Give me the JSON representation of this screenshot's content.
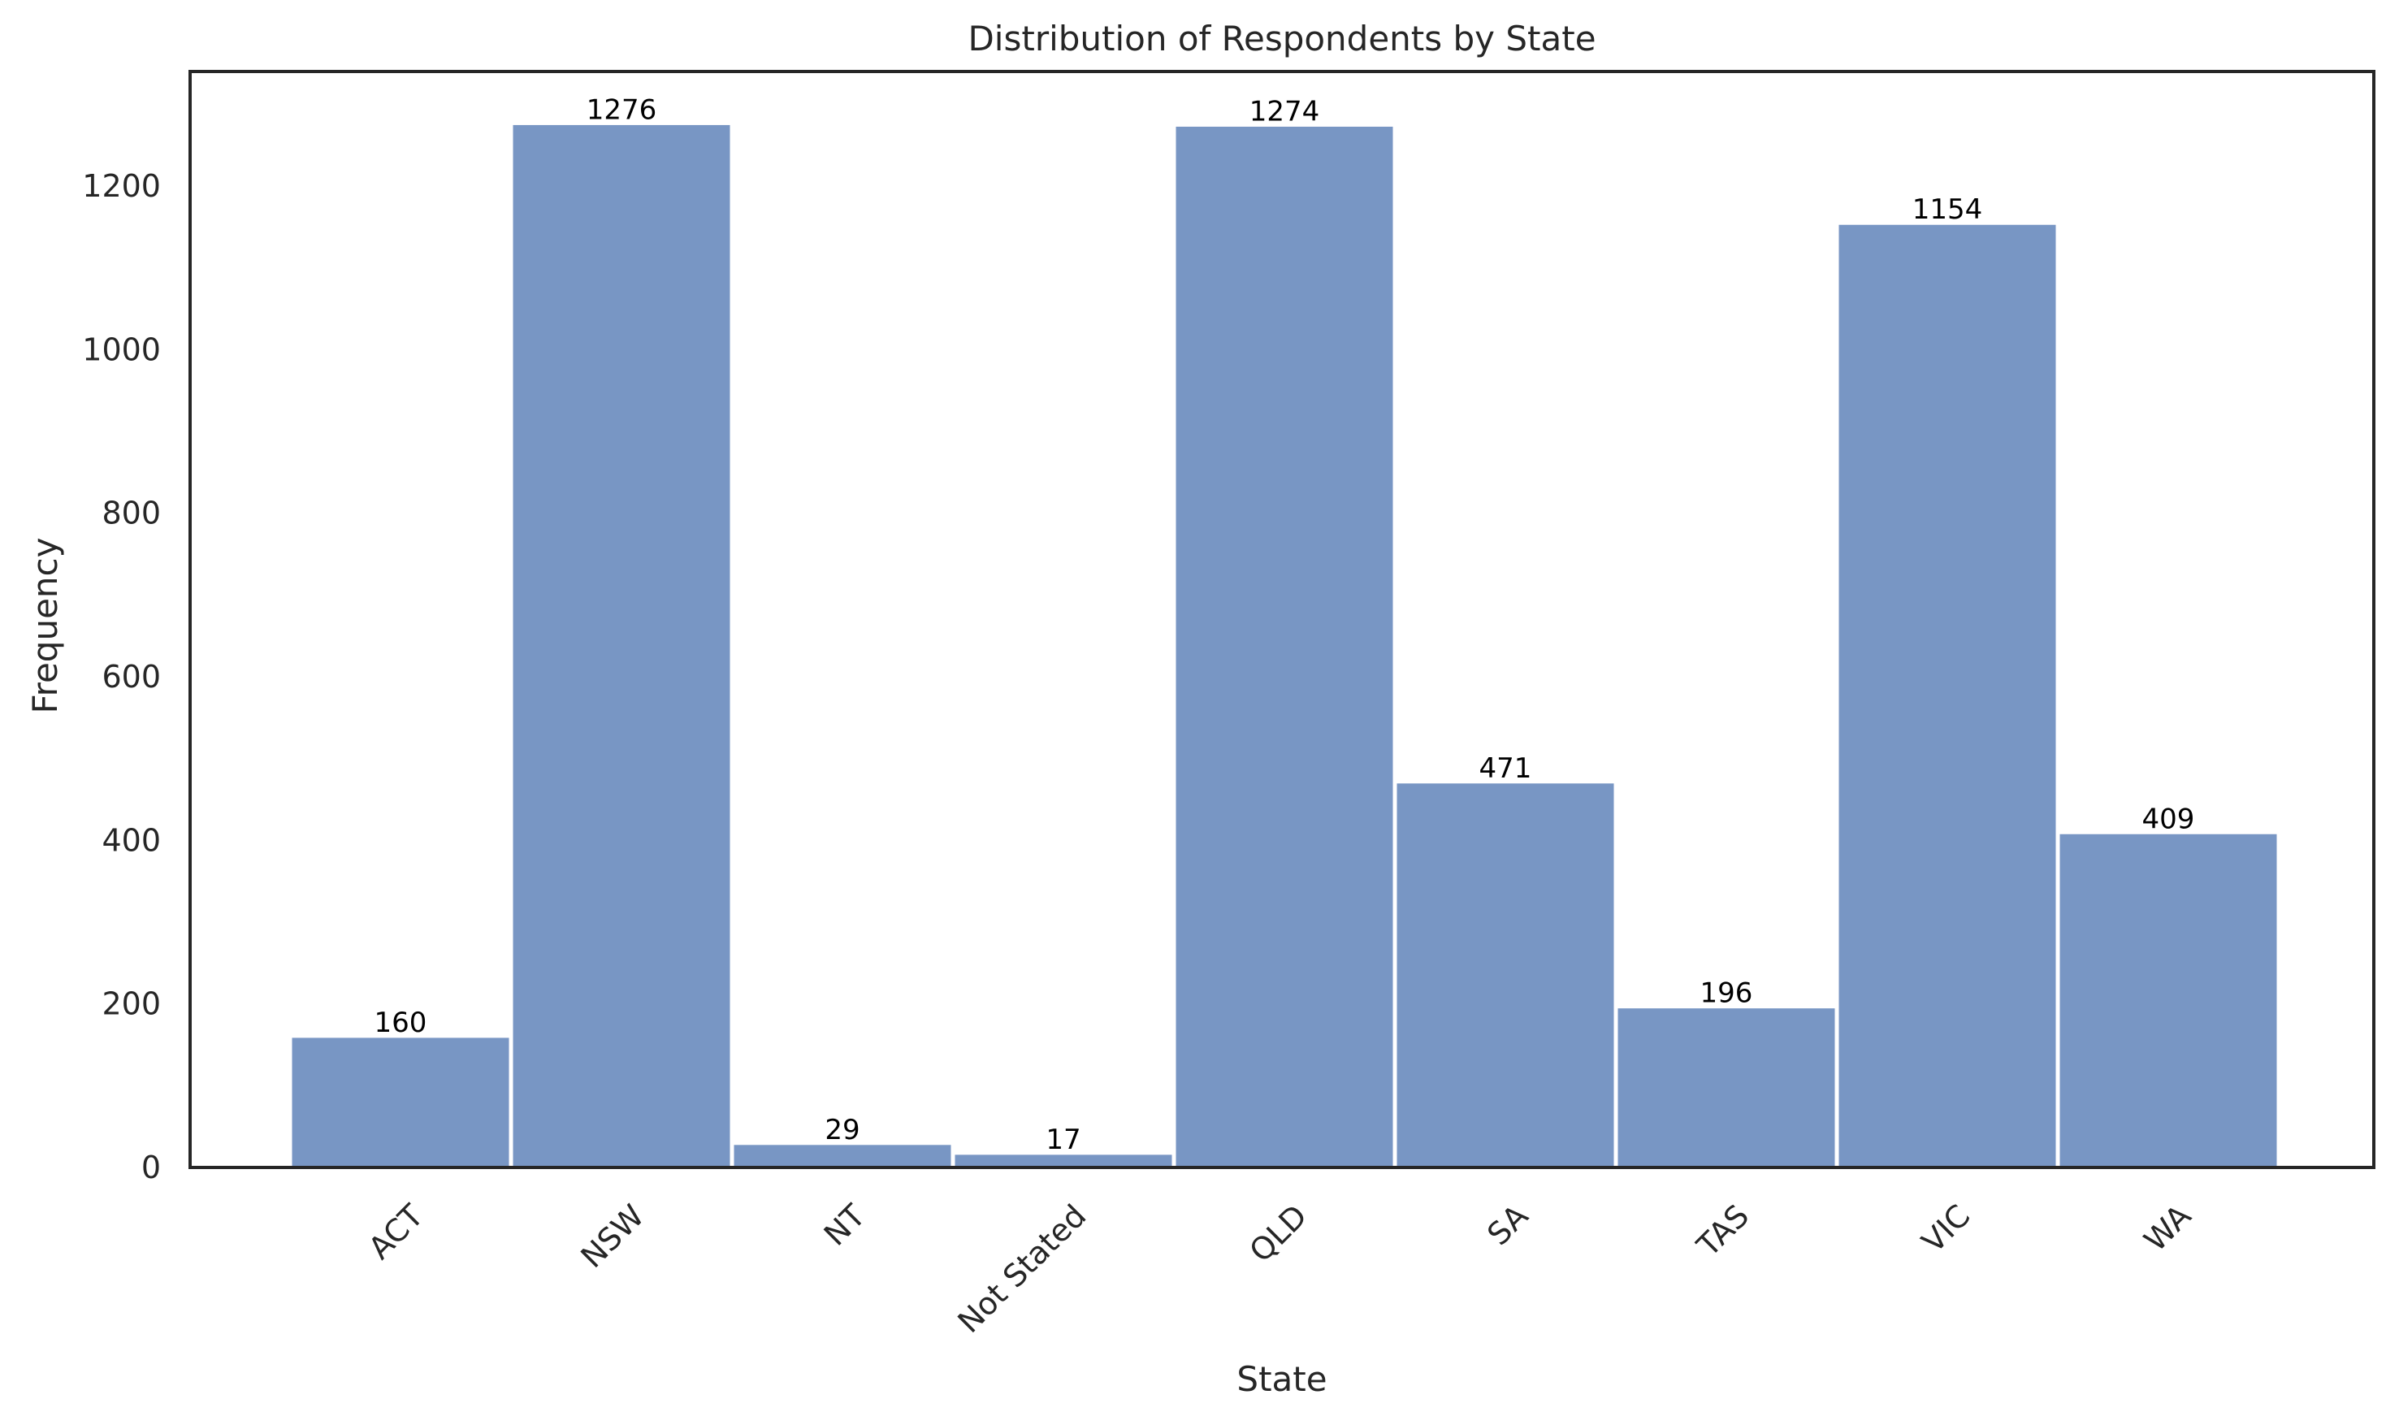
{
  "chart_data": {
    "type": "bar",
    "title": "Distribution of Respondents by State",
    "xlabel": "State",
    "ylabel": "Frequency",
    "categories": [
      "ACT",
      "NSW",
      "NT",
      "Not Stated",
      "QLD",
      "SA",
      "TAS",
      "VIC",
      "WA"
    ],
    "values": [
      160,
      1276,
      29,
      17,
      1274,
      471,
      196,
      1154,
      409
    ],
    "ylim": [
      0,
      1340
    ],
    "yticks": [
      0,
      200,
      400,
      600,
      800,
      1000,
      1200
    ],
    "grid": false,
    "legend": "none",
    "bar_color": "#7896c4"
  }
}
